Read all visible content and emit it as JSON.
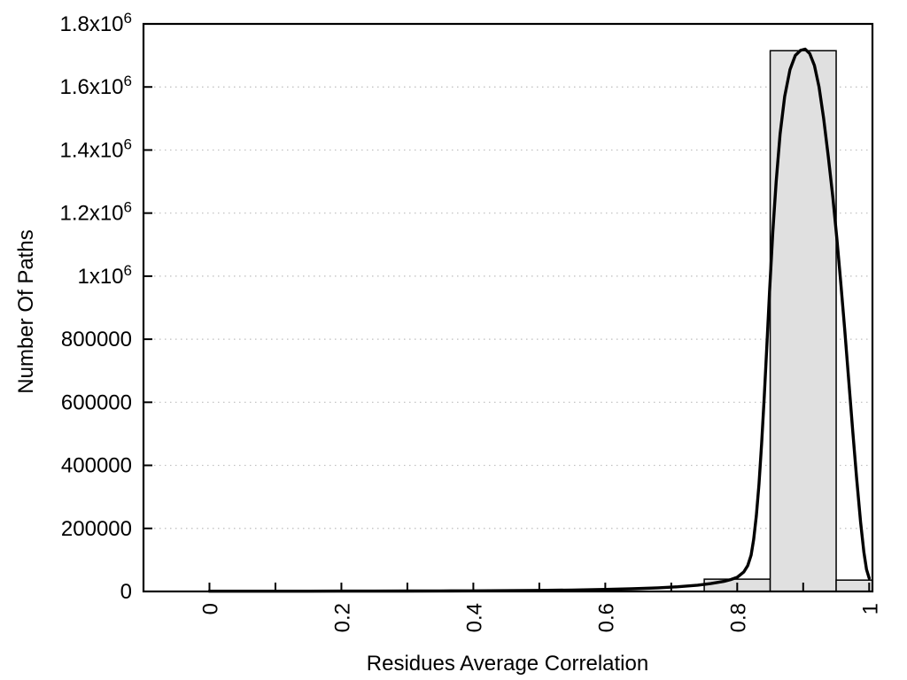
{
  "chart_data": {
    "type": "bar",
    "subtype": "histogram-with-density-curve",
    "title": "",
    "xlabel": "Residues Average Correlation",
    "ylabel": "Number Of Paths",
    "xlim": [
      -0.1,
      1.005
    ],
    "ylim": [
      0,
      1800000
    ],
    "grid": "horizontal-dotted",
    "legend": "none",
    "x_major_ticks": [
      0,
      0.2,
      0.4,
      0.6,
      0.8,
      1
    ],
    "x_tick_labels": [
      "0",
      "0.2",
      "0.4",
      "0.6",
      "0.8",
      "1"
    ],
    "x_minor_step": 0.1,
    "y_ticks": [
      0,
      200000,
      400000,
      600000,
      800000,
      1000000,
      1200000,
      1400000,
      1600000,
      1800000
    ],
    "y_tick_labels": [
      {
        "text": "0"
      },
      {
        "text": "200000"
      },
      {
        "text": "400000"
      },
      {
        "text": "600000"
      },
      {
        "text": "800000"
      },
      {
        "text": "1x10",
        "sup": "6"
      },
      {
        "text": "1.2x10",
        "sup": "6"
      },
      {
        "text": "1.4x10",
        "sup": "6"
      },
      {
        "text": "1.6x10",
        "sup": "6"
      },
      {
        "text": "1.8x10",
        "sup": "6"
      }
    ],
    "bars": [
      {
        "x0": 0.75,
        "x1": 0.85,
        "value": 39000
      },
      {
        "x0": 0.85,
        "x1": 0.95,
        "value": 1715000
      },
      {
        "x0": 0.95,
        "x1": 1.005,
        "value": 36000
      }
    ],
    "curve_peak": {
      "x": 0.903,
      "value": 1720000
    },
    "curve": [
      [
        0,
        800
      ],
      [
        0.05,
        800
      ],
      [
        0.1,
        900
      ],
      [
        0.15,
        950
      ],
      [
        0.2,
        1000
      ],
      [
        0.25,
        1150
      ],
      [
        0.3,
        1300
      ],
      [
        0.35,
        1600
      ],
      [
        0.4,
        2000
      ],
      [
        0.45,
        2600
      ],
      [
        0.5,
        3400
      ],
      [
        0.55,
        4600
      ],
      [
        0.6,
        6500
      ],
      [
        0.64,
        8500
      ],
      [
        0.68,
        11500
      ],
      [
        0.71,
        15000
      ],
      [
        0.74,
        20000
      ],
      [
        0.76,
        25000
      ],
      [
        0.78,
        32000
      ],
      [
        0.79,
        37500
      ],
      [
        0.8,
        45000
      ],
      [
        0.81,
        62000
      ],
      [
        0.816,
        82000
      ],
      [
        0.821,
        115000
      ],
      [
        0.825,
        165000
      ],
      [
        0.829,
        240000
      ],
      [
        0.833,
        340000
      ],
      [
        0.837,
        470000
      ],
      [
        0.841,
        620000
      ],
      [
        0.845,
        780000
      ],
      [
        0.849,
        950000
      ],
      [
        0.854,
        1140000
      ],
      [
        0.859,
        1300000
      ],
      [
        0.865,
        1450000
      ],
      [
        0.872,
        1570000
      ],
      [
        0.88,
        1655000
      ],
      [
        0.888,
        1700000
      ],
      [
        0.896,
        1716000
      ],
      [
        0.903,
        1720000
      ],
      [
        0.91,
        1706000
      ],
      [
        0.917,
        1668000
      ],
      [
        0.924,
        1600000
      ],
      [
        0.931,
        1500000
      ],
      [
        0.938,
        1380000
      ],
      [
        0.945,
        1250000
      ],
      [
        0.951,
        1120000
      ],
      [
        0.957,
        980000
      ],
      [
        0.963,
        830000
      ],
      [
        0.969,
        670000
      ],
      [
        0.975,
        510000
      ],
      [
        0.981,
        360000
      ],
      [
        0.987,
        220000
      ],
      [
        0.992,
        125000
      ],
      [
        0.996,
        70000
      ],
      [
        1.0,
        42000
      ]
    ],
    "colors": {
      "background": "#ffffff",
      "bar_fill": "#e0e0e0",
      "bar_edge": "#000000",
      "curve": "#000000",
      "grid": "#bdbdbd",
      "axis": "#000000",
      "text": "#000000"
    }
  }
}
